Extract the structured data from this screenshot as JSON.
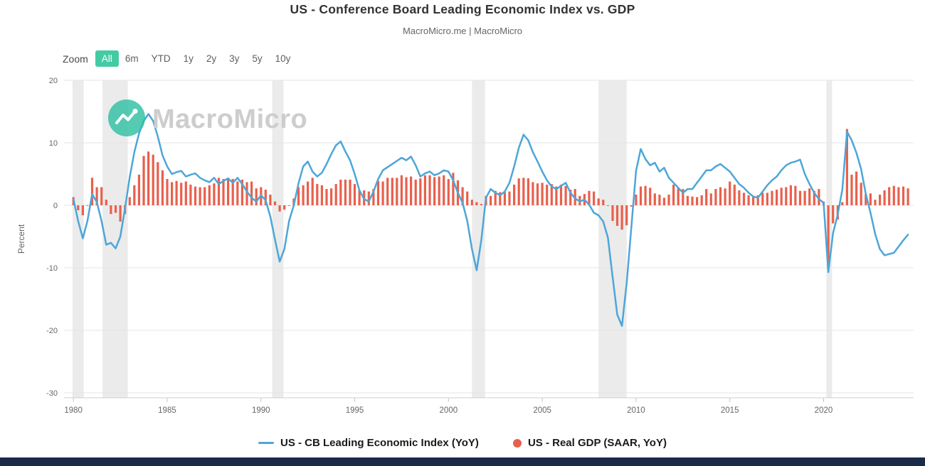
{
  "page": {
    "title": "US - Conference Board Leading Economic Index vs. GDP",
    "subtitle": "MacroMicro.me | MacroMicro"
  },
  "toolbar": {
    "zoom_label": "Zoom",
    "ranges": [
      {
        "label": "All",
        "active": true
      },
      {
        "label": "6m",
        "active": false
      },
      {
        "label": "YTD",
        "active": false
      },
      {
        "label": "1y",
        "active": false
      },
      {
        "label": "2y",
        "active": false
      },
      {
        "label": "3y",
        "active": false
      },
      {
        "label": "5y",
        "active": false
      },
      {
        "label": "10y",
        "active": false
      }
    ],
    "active_button_bg": "#44cba4"
  },
  "watermark": {
    "text": "MacroMicro",
    "icon": "macromicro-logo-icon",
    "icon_color": "#2fc0a3"
  },
  "colors": {
    "line_series": "#4da6d8",
    "bar_series": "#e8604c",
    "recession_band": "#ebebeb",
    "gridline": "#e6e6e6",
    "axis_text": "#666666",
    "footer_bar": "#1b2a4a"
  },
  "chart_data": {
    "type": "line+bar",
    "title": "US - Conference Board Leading Economic Index vs. GDP",
    "subtitle": "MacroMicro.me | MacroMicro",
    "xlabel": "",
    "ylabel": "Percent",
    "ylim": [
      -30,
      20
    ],
    "yticks": [
      20,
      10,
      0,
      -10,
      -20,
      -30
    ],
    "xticks": [
      1980,
      1985,
      1990,
      1995,
      2000,
      2005,
      2010,
      2015,
      2020
    ],
    "x_start": 1980.0,
    "x_step": 0.25,
    "grid": true,
    "legend_position": "bottom",
    "recession_bands": [
      [
        1979.95,
        1980.55
      ],
      [
        1981.55,
        1982.9
      ],
      [
        1990.6,
        1991.2
      ],
      [
        2001.25,
        2001.95
      ],
      [
        2008.0,
        2009.5
      ],
      [
        2020.15,
        2020.45
      ]
    ],
    "series": [
      {
        "name": "US - CB Leading Economic Index (YoY)",
        "type": "line",
        "color": "#4da6d8",
        "values": [
          1.0,
          -2.5,
          -5.3,
          -2.5,
          1.8,
          0.5,
          -2.5,
          -6.3,
          -6.0,
          -6.9,
          -5.0,
          -0.5,
          4.5,
          8.5,
          11.5,
          13.5,
          14.6,
          13.5,
          11.0,
          8.0,
          6.2,
          5.0,
          5.3,
          5.5,
          4.6,
          4.9,
          5.1,
          4.4,
          4.0,
          3.7,
          4.4,
          3.4,
          3.9,
          4.3,
          3.6,
          4.4,
          3.4,
          2.2,
          1.2,
          0.6,
          1.6,
          0.8,
          -1.8,
          -5.5,
          -9.0,
          -7.0,
          -2.5,
          0.0,
          3.5,
          6.2,
          7.0,
          5.4,
          4.6,
          5.2,
          6.6,
          8.2,
          9.6,
          10.2,
          8.6,
          7.2,
          5.0,
          2.4,
          1.0,
          0.6,
          2.2,
          4.2,
          5.6,
          6.1,
          6.6,
          7.1,
          7.6,
          7.2,
          7.8,
          6.4,
          4.6,
          5.1,
          5.4,
          4.8,
          5.1,
          5.6,
          5.4,
          4.0,
          2.0,
          0.4,
          -2.5,
          -7.0,
          -10.4,
          -5.5,
          1.2,
          2.6,
          2.0,
          1.6,
          2.2,
          3.6,
          6.2,
          9.2,
          11.3,
          10.4,
          8.5,
          7.0,
          5.4,
          4.0,
          3.0,
          2.6,
          3.1,
          3.6,
          2.0,
          1.1,
          0.6,
          0.9,
          0.1,
          -1.2,
          -1.6,
          -2.6,
          -5.2,
          -11.5,
          -17.5,
          -19.3,
          -12.5,
          -3.5,
          5.5,
          9.0,
          7.4,
          6.4,
          6.8,
          5.4,
          6.0,
          4.4,
          3.6,
          2.8,
          2.0,
          2.6,
          2.6,
          3.6,
          4.6,
          5.6,
          5.6,
          6.2,
          6.6,
          6.0,
          5.4,
          4.4,
          3.4,
          2.8,
          2.0,
          1.4,
          1.2,
          2.2,
          3.2,
          4.0,
          4.6,
          5.6,
          6.4,
          6.8,
          7.0,
          7.3,
          5.0,
          3.4,
          2.0,
          1.0,
          0.4,
          -10.7,
          -4.5,
          -1.5,
          2.5,
          11.8,
          10.4,
          8.4,
          5.8,
          1.8,
          -1.2,
          -4.6,
          -7.0,
          -8.0,
          -7.8,
          -7.6,
          -6.6,
          -5.6,
          -4.7
        ]
      },
      {
        "name": "US - Real GDP (SAAR, YoY)",
        "type": "bar",
        "color": "#e8604c",
        "values": [
          1.3,
          -0.8,
          -1.6,
          -0.1,
          4.4,
          2.9,
          2.9,
          0.9,
          -1.4,
          -1.2,
          -2.6,
          -1.4,
          1.3,
          3.2,
          4.9,
          7.9,
          8.6,
          8.1,
          6.9,
          5.6,
          4.2,
          3.7,
          3.9,
          3.6,
          3.8,
          3.3,
          3.0,
          2.9,
          2.9,
          3.2,
          3.5,
          4.4,
          4.2,
          4.4,
          4.2,
          3.8,
          4.1,
          3.7,
          3.8,
          2.7,
          2.9,
          2.5,
          1.7,
          0.6,
          -1.0,
          -0.7,
          -0.1,
          1.1,
          2.9,
          3.2,
          3.8,
          4.4,
          3.4,
          3.2,
          2.6,
          2.7,
          3.4,
          4.1,
          4.1,
          4.1,
          3.4,
          2.4,
          2.4,
          2.2,
          2.6,
          3.9,
          3.8,
          4.4,
          4.4,
          4.4,
          4.8,
          4.5,
          4.6,
          4.1,
          4.3,
          4.8,
          4.8,
          4.5,
          4.6,
          4.8,
          4.2,
          5.2,
          4.0,
          2.9,
          2.2,
          0.9,
          0.5,
          0.2,
          1.5,
          1.5,
          2.3,
          2.1,
          2.1,
          2.2,
          3.3,
          4.3,
          4.4,
          4.3,
          3.7,
          3.5,
          3.6,
          3.3,
          3.4,
          3.0,
          3.3,
          3.1,
          2.5,
          2.6,
          1.5,
          1.8,
          2.3,
          2.2,
          1.1,
          0.9,
          -0.1,
          -2.5,
          -3.3,
          -3.9,
          -3.2,
          -0.2,
          1.7,
          3.0,
          3.1,
          2.8,
          1.9,
          1.7,
          1.2,
          1.7,
          3.3,
          2.7,
          2.6,
          1.5,
          1.4,
          1.3,
          1.6,
          2.6,
          1.9,
          2.6,
          2.9,
          2.7,
          3.8,
          3.3,
          2.4,
          2.0,
          1.6,
          1.3,
          1.6,
          2.0,
          2.0,
          2.3,
          2.5,
          2.8,
          2.9,
          3.2,
          3.1,
          2.3,
          2.3,
          2.7,
          2.3,
          2.6,
          0.6,
          -9.1,
          -2.9,
          -2.3,
          0.5,
          12.2,
          4.9,
          5.4,
          3.6,
          1.8,
          1.9,
          0.9,
          1.7,
          2.4,
          2.9,
          3.1,
          2.9,
          3.0,
          2.7
        ]
      }
    ]
  }
}
